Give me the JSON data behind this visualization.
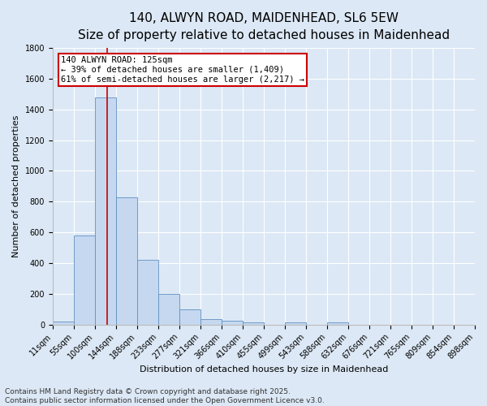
{
  "title_line1": "140, ALWYN ROAD, MAIDENHEAD, SL6 5EW",
  "title_line2": "Size of property relative to detached houses in Maidenhead",
  "xlabel": "Distribution of detached houses by size in Maidenhead",
  "ylabel": "Number of detached properties",
  "bin_edges": [
    11,
    55,
    100,
    144,
    188,
    233,
    277,
    321,
    366,
    410,
    455,
    499,
    543,
    588,
    632,
    676,
    721,
    765,
    809,
    854,
    898
  ],
  "bar_heights": [
    20,
    580,
    1480,
    830,
    420,
    200,
    100,
    35,
    25,
    15,
    0,
    15,
    0,
    15,
    0,
    0,
    0,
    0,
    0,
    0
  ],
  "bar_color": "#c5d8f0",
  "bar_edge_color": "#6090c0",
  "fig_bg_color": "#dce8f5",
  "ax_bg_color": "#dce8f5",
  "grid_color": "#ffffff",
  "property_size": 125,
  "vline_color": "#cc0000",
  "annotation_text": "140 ALWYN ROAD: 125sqm\n← 39% of detached houses are smaller (1,409)\n61% of semi-detached houses are larger (2,217) →",
  "annotation_box_facecolor": "#ffffff",
  "annotation_box_edgecolor": "#cc0000",
  "ylim": [
    0,
    1800
  ],
  "yticks": [
    0,
    200,
    400,
    600,
    800,
    1000,
    1200,
    1400,
    1600,
    1800
  ],
  "footer_line1": "Contains HM Land Registry data © Crown copyright and database right 2025.",
  "footer_line2": "Contains public sector information licensed under the Open Government Licence v3.0.",
  "title_fontsize": 11,
  "subtitle_fontsize": 9.5,
  "ylabel_fontsize": 8,
  "xlabel_fontsize": 8,
  "tick_fontsize": 7,
  "annotation_fontsize": 7.5,
  "footer_fontsize": 6.5
}
